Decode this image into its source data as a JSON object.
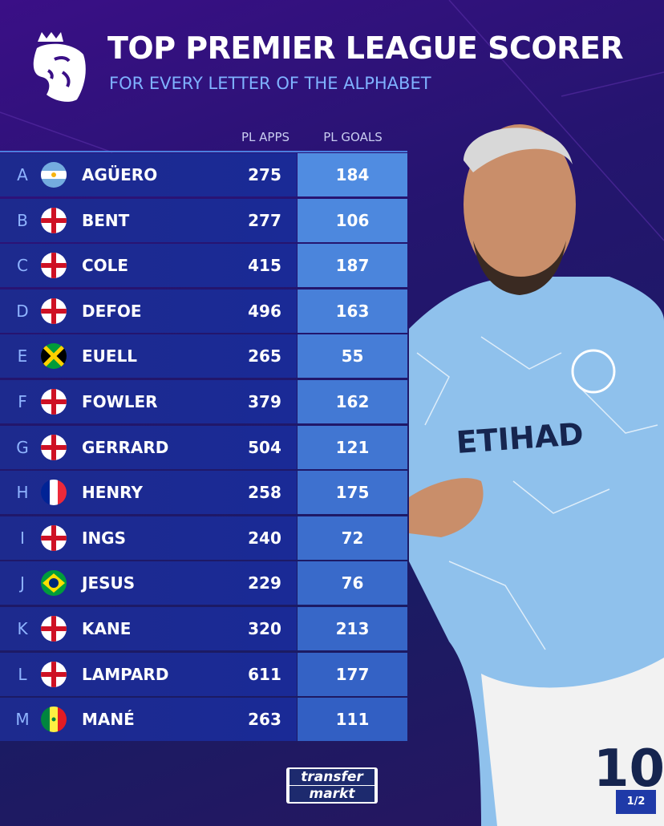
{
  "header": {
    "title": "TOP PREMIER LEAGUE SCORER",
    "subtitle": "FOR EVERY LETTER OF THE ALPHABET"
  },
  "table": {
    "columns": [
      "PL APPS",
      "PL GOALS"
    ],
    "rows": [
      [
        "A",
        "AGÜERO",
        275,
        184
      ],
      [
        "B",
        "BENT",
        277,
        106
      ],
      [
        "C",
        "COLE",
        415,
        187
      ],
      [
        "D",
        "DEFOE",
        496,
        163
      ],
      [
        "E",
        "EUELL",
        265,
        55
      ],
      [
        "F",
        "FOWLER",
        379,
        162
      ],
      [
        "G",
        "GERRARD",
        504,
        121
      ],
      [
        "H",
        "HENRY",
        258,
        175
      ],
      [
        "I",
        "INGS",
        240,
        72
      ],
      [
        "J",
        "JESUS",
        229,
        76
      ],
      [
        "K",
        "KANE",
        320,
        213
      ],
      [
        "L",
        "LAMPARD",
        611,
        177
      ],
      [
        "M",
        "MANÉ",
        263,
        111
      ]
    ]
  },
  "footer": {
    "logo": [
      "transfer",
      "markt"
    ],
    "page": "1/2"
  }
}
